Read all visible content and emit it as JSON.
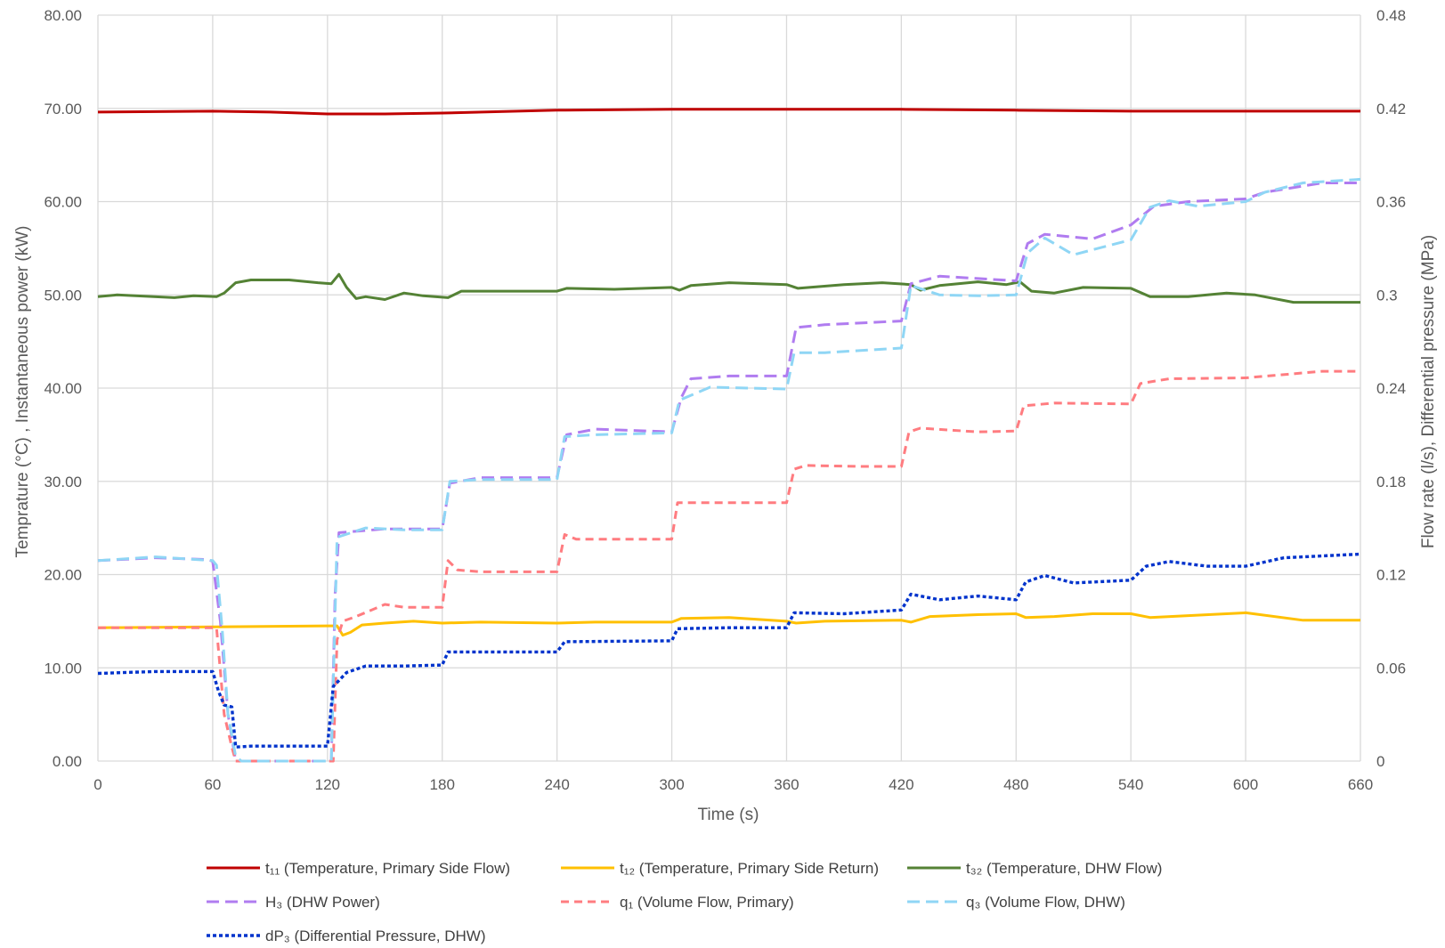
{
  "chart_data": {
    "type": "line",
    "xlabel": "Time (s)",
    "ylabel": "Temprature (°C) , Instantaneous power (kW)",
    "y2label": "Flow rate (l/s), Differential pressure (MPa)",
    "xlim": [
      0,
      660
    ],
    "ylim": [
      0,
      80
    ],
    "y2lim": [
      0,
      0.48
    ],
    "x_ticks": [
      0,
      60,
      120,
      180,
      240,
      300,
      360,
      420,
      480,
      540,
      600,
      660
    ],
    "x_tick_labels": [
      "0",
      "60",
      "120",
      "180",
      "240",
      "300",
      "360",
      "420",
      "480",
      "540",
      "600",
      "660"
    ],
    "y_ticks": [
      0,
      10,
      20,
      30,
      40,
      50,
      60,
      70,
      80
    ],
    "y_tick_labels": [
      "0.00",
      "10.00",
      "20.00",
      "30.00",
      "40.00",
      "50.00",
      "60.00",
      "70.00",
      "80.00"
    ],
    "y2_ticks": [
      0,
      0.06,
      0.12,
      0.18,
      0.24,
      0.3,
      0.36,
      0.42,
      0.48
    ],
    "y2_tick_labels": [
      "0",
      "0.06",
      "0.12",
      "0.18",
      "0.24",
      "0.3",
      "0.36",
      "0.42",
      "0.48"
    ],
    "grid": true,
    "legend_position": "bottom",
    "series": [
      {
        "name": "t₁₁ (Temperature, Primary Side Flow)",
        "axis": "left",
        "color": "#C00000",
        "dash": "solid",
        "points": [
          [
            0,
            69.6
          ],
          [
            60,
            69.7
          ],
          [
            90,
            69.6
          ],
          [
            120,
            69.4
          ],
          [
            150,
            69.4
          ],
          [
            180,
            69.5
          ],
          [
            240,
            69.8
          ],
          [
            300,
            69.9
          ],
          [
            360,
            69.9
          ],
          [
            420,
            69.9
          ],
          [
            480,
            69.8
          ],
          [
            540,
            69.7
          ],
          [
            600,
            69.7
          ],
          [
            660,
            69.7
          ]
        ]
      },
      {
        "name": "t₁₂ (Temperature, Primary Side Return)",
        "axis": "left",
        "color": "#FFC000",
        "dash": "solid",
        "points": [
          [
            0,
            14.3
          ],
          [
            60,
            14.4
          ],
          [
            120,
            14.5
          ],
          [
            125,
            14.5
          ],
          [
            128,
            13.5
          ],
          [
            132,
            13.8
          ],
          [
            138,
            14.6
          ],
          [
            150,
            14.8
          ],
          [
            165,
            15.0
          ],
          [
            180,
            14.8
          ],
          [
            200,
            14.9
          ],
          [
            240,
            14.8
          ],
          [
            260,
            14.9
          ],
          [
            300,
            14.9
          ],
          [
            305,
            15.3
          ],
          [
            330,
            15.4
          ],
          [
            360,
            15.0
          ],
          [
            365,
            14.8
          ],
          [
            380,
            15.0
          ],
          [
            420,
            15.1
          ],
          [
            425,
            14.9
          ],
          [
            435,
            15.5
          ],
          [
            460,
            15.7
          ],
          [
            480,
            15.8
          ],
          [
            485,
            15.4
          ],
          [
            500,
            15.5
          ],
          [
            520,
            15.8
          ],
          [
            540,
            15.8
          ],
          [
            550,
            15.4
          ],
          [
            570,
            15.6
          ],
          [
            600,
            15.9
          ],
          [
            630,
            15.1
          ],
          [
            660,
            15.1
          ]
        ]
      },
      {
        "name": "t₃₂ (Temperature, DHW Flow)",
        "axis": "left",
        "color": "#548235",
        "dash": "solid",
        "points": [
          [
            0,
            49.8
          ],
          [
            10,
            50.0
          ],
          [
            40,
            49.7
          ],
          [
            50,
            49.9
          ],
          [
            62,
            49.8
          ],
          [
            66,
            50.2
          ],
          [
            72,
            51.3
          ],
          [
            80,
            51.6
          ],
          [
            100,
            51.6
          ],
          [
            115,
            51.3
          ],
          [
            122,
            51.2
          ],
          [
            126,
            52.2
          ],
          [
            130,
            50.8
          ],
          [
            135,
            49.6
          ],
          [
            140,
            49.8
          ],
          [
            150,
            49.5
          ],
          [
            160,
            50.2
          ],
          [
            170,
            49.9
          ],
          [
            183,
            49.7
          ],
          [
            190,
            50.4
          ],
          [
            210,
            50.4
          ],
          [
            240,
            50.4
          ],
          [
            245,
            50.7
          ],
          [
            270,
            50.6
          ],
          [
            300,
            50.8
          ],
          [
            304,
            50.5
          ],
          [
            310,
            51.0
          ],
          [
            330,
            51.3
          ],
          [
            360,
            51.1
          ],
          [
            366,
            50.7
          ],
          [
            390,
            51.1
          ],
          [
            410,
            51.3
          ],
          [
            425,
            51.1
          ],
          [
            430,
            50.5
          ],
          [
            440,
            51.0
          ],
          [
            460,
            51.4
          ],
          [
            475,
            51.1
          ],
          [
            482,
            51.4
          ],
          [
            488,
            50.4
          ],
          [
            500,
            50.2
          ],
          [
            515,
            50.8
          ],
          [
            540,
            50.7
          ],
          [
            550,
            49.8
          ],
          [
            570,
            49.8
          ],
          [
            590,
            50.2
          ],
          [
            605,
            50.0
          ],
          [
            625,
            49.2
          ],
          [
            660,
            49.2
          ]
        ]
      },
      {
        "name": "H₃ (DHW Power)",
        "axis": "left",
        "color": "#B07CF0",
        "dash": "long",
        "points": [
          [
            0,
            21.5
          ],
          [
            30,
            21.8
          ],
          [
            58,
            21.6
          ],
          [
            60,
            21.4
          ],
          [
            64,
            15.0
          ],
          [
            68,
            5.0
          ],
          [
            72,
            0.0
          ],
          [
            122,
            0.0
          ],
          [
            124,
            18.0
          ],
          [
            126,
            24.5
          ],
          [
            150,
            24.9
          ],
          [
            180,
            24.9
          ],
          [
            184,
            29.8
          ],
          [
            200,
            30.4
          ],
          [
            240,
            30.4
          ],
          [
            245,
            35.0
          ],
          [
            260,
            35.6
          ],
          [
            300,
            35.3
          ],
          [
            305,
            39.0
          ],
          [
            310,
            41.0
          ],
          [
            330,
            41.3
          ],
          [
            360,
            41.3
          ],
          [
            365,
            46.5
          ],
          [
            380,
            46.8
          ],
          [
            420,
            47.2
          ],
          [
            425,
            51.2
          ],
          [
            440,
            52.0
          ],
          [
            480,
            51.5
          ],
          [
            486,
            55.5
          ],
          [
            495,
            56.5
          ],
          [
            520,
            56.0
          ],
          [
            540,
            57.5
          ],
          [
            552,
            59.5
          ],
          [
            570,
            60.0
          ],
          [
            600,
            60.3
          ],
          [
            610,
            61.0
          ],
          [
            640,
            62.0
          ],
          [
            660,
            62.0
          ]
        ]
      },
      {
        "name": "q₁ (Volume Flow, Primary)",
        "axis": "right",
        "color": "#FF7C80",
        "dash": "medium",
        "points": [
          [
            0,
            0.0858
          ],
          [
            30,
            0.0858
          ],
          [
            62,
            0.0858
          ],
          [
            66,
            0.03
          ],
          [
            70,
            0.009
          ],
          [
            72,
            0.0
          ],
          [
            123,
            0.0
          ],
          [
            125,
            0.078
          ],
          [
            128,
            0.09
          ],
          [
            135,
            0.093
          ],
          [
            150,
            0.1008
          ],
          [
            160,
            0.099
          ],
          [
            180,
            0.099
          ],
          [
            183,
            0.129
          ],
          [
            188,
            0.123
          ],
          [
            200,
            0.1218
          ],
          [
            240,
            0.1218
          ],
          [
            244,
            0.1458
          ],
          [
            250,
            0.1428
          ],
          [
            300,
            0.1428
          ],
          [
            303,
            0.1662
          ],
          [
            320,
            0.1662
          ],
          [
            360,
            0.1662
          ],
          [
            364,
            0.1878
          ],
          [
            370,
            0.1902
          ],
          [
            400,
            0.1896
          ],
          [
            420,
            0.1896
          ],
          [
            424,
            0.2118
          ],
          [
            430,
            0.2142
          ],
          [
            460,
            0.2118
          ],
          [
            480,
            0.2124
          ],
          [
            484,
            0.2286
          ],
          [
            500,
            0.2304
          ],
          [
            540,
            0.2298
          ],
          [
            545,
            0.243
          ],
          [
            560,
            0.246
          ],
          [
            600,
            0.2466
          ],
          [
            640,
            0.2508
          ],
          [
            660,
            0.2508
          ]
        ]
      },
      {
        "name": "q₃ (Volume Flow, DHW)",
        "axis": "right",
        "color": "#8FD6F5",
        "dash": "long",
        "points": [
          [
            0,
            0.129
          ],
          [
            30,
            0.1314
          ],
          [
            60,
            0.129
          ],
          [
            62,
            0.126
          ],
          [
            65,
            0.084
          ],
          [
            68,
            0.03
          ],
          [
            72,
            0.003
          ],
          [
            75,
            0.0
          ],
          [
            122,
            0.0
          ],
          [
            125,
            0.144
          ],
          [
            140,
            0.15
          ],
          [
            160,
            0.1488
          ],
          [
            180,
            0.1488
          ],
          [
            184,
            0.18
          ],
          [
            200,
            0.1812
          ],
          [
            240,
            0.1812
          ],
          [
            244,
            0.2088
          ],
          [
            260,
            0.21
          ],
          [
            300,
            0.2112
          ],
          [
            304,
            0.2322
          ],
          [
            320,
            0.2406
          ],
          [
            360,
            0.2394
          ],
          [
            364,
            0.2628
          ],
          [
            380,
            0.2628
          ],
          [
            420,
            0.2658
          ],
          [
            425,
            0.306
          ],
          [
            440,
            0.3
          ],
          [
            460,
            0.2994
          ],
          [
            480,
            0.3
          ],
          [
            486,
            0.327
          ],
          [
            495,
            0.3366
          ],
          [
            510,
            0.3258
          ],
          [
            540,
            0.3354
          ],
          [
            550,
            0.3564
          ],
          [
            560,
            0.3606
          ],
          [
            575,
            0.357
          ],
          [
            600,
            0.36
          ],
          [
            610,
            0.366
          ],
          [
            630,
            0.372
          ],
          [
            660,
            0.3744
          ]
        ]
      },
      {
        "name": "dP₃ (Differential Pressure, DHW)",
        "axis": "right",
        "color": "#0033CC",
        "dash": "dotted",
        "points": [
          [
            0,
            0.0564
          ],
          [
            30,
            0.0576
          ],
          [
            60,
            0.0576
          ],
          [
            63,
            0.045
          ],
          [
            66,
            0.036
          ],
          [
            70,
            0.0348
          ],
          [
            72,
            0.009
          ],
          [
            80,
            0.0096
          ],
          [
            120,
            0.0096
          ],
          [
            123,
            0.048
          ],
          [
            130,
            0.057
          ],
          [
            140,
            0.0612
          ],
          [
            160,
            0.0612
          ],
          [
            180,
            0.0618
          ],
          [
            183,
            0.0702
          ],
          [
            200,
            0.0702
          ],
          [
            240,
            0.0702
          ],
          [
            244,
            0.0768
          ],
          [
            300,
            0.0774
          ],
          [
            303,
            0.0852
          ],
          [
            330,
            0.0858
          ],
          [
            360,
            0.0858
          ],
          [
            364,
            0.0954
          ],
          [
            390,
            0.0948
          ],
          [
            420,
            0.0972
          ],
          [
            425,
            0.1074
          ],
          [
            440,
            0.1038
          ],
          [
            460,
            0.1062
          ],
          [
            480,
            0.1038
          ],
          [
            485,
            0.1152
          ],
          [
            495,
            0.1194
          ],
          [
            510,
            0.1146
          ],
          [
            540,
            0.1164
          ],
          [
            548,
            0.1254
          ],
          [
            560,
            0.1284
          ],
          [
            580,
            0.1254
          ],
          [
            600,
            0.1254
          ],
          [
            620,
            0.1308
          ],
          [
            660,
            0.1332
          ]
        ]
      }
    ]
  }
}
